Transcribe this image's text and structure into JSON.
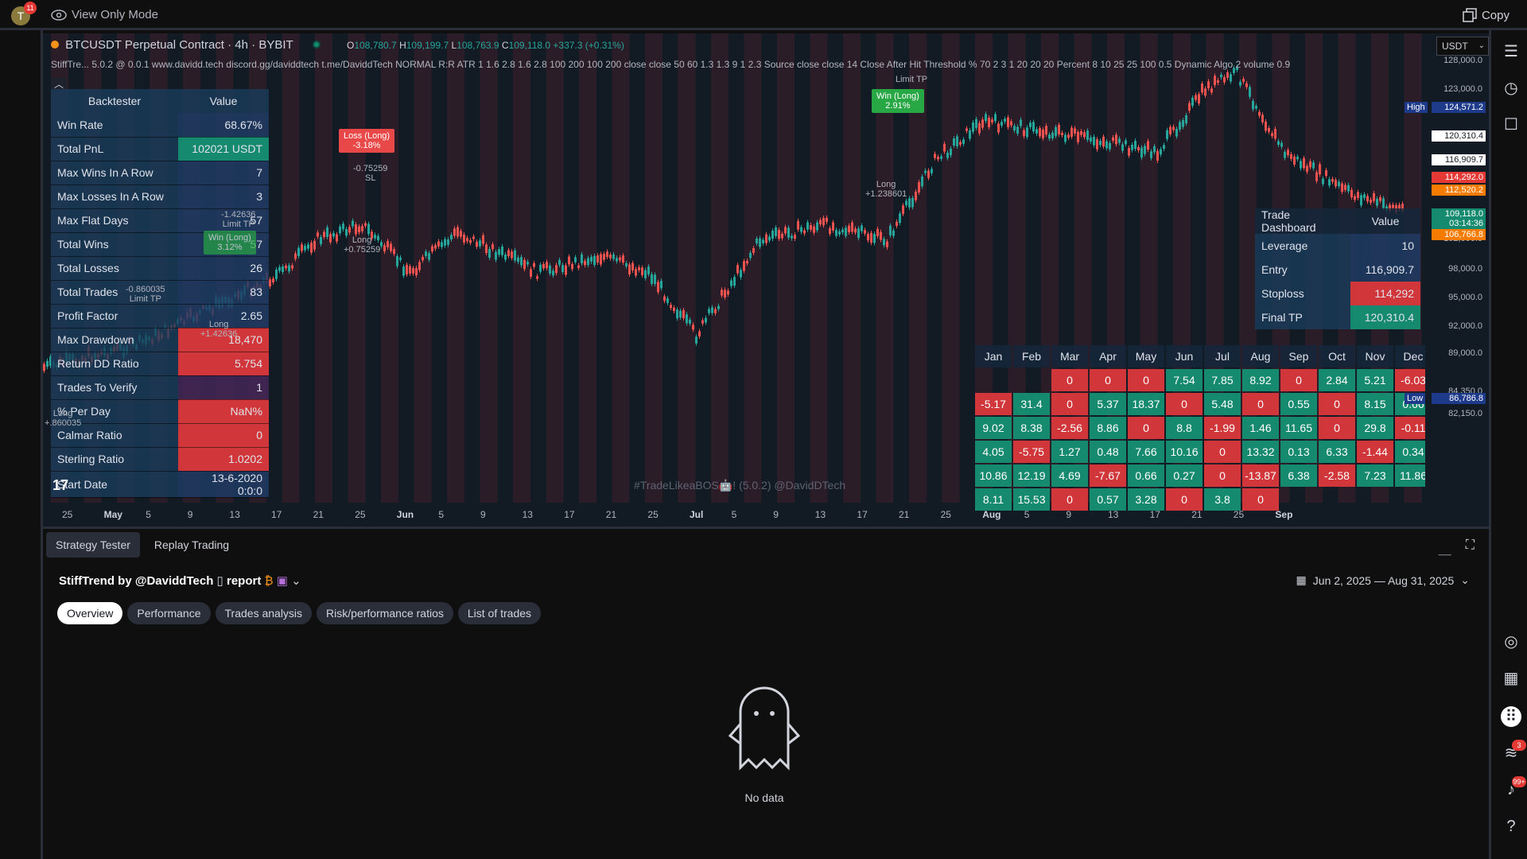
{
  "topbar": {
    "avatar_letter": "T",
    "avatar_badge": "11",
    "view_mode": "View Only Mode",
    "copy_label": "Copy"
  },
  "chart": {
    "symbol": "BTCUSDT Perpetual Contract · 4h · BYBIT",
    "ohlc": {
      "o_label": "O",
      "o": "108,780.7",
      "h_label": "H",
      "h": "109,199.7",
      "l_label": "L",
      "l": "108,763.9",
      "c_label": "C",
      "c": "109,118.0",
      "change": "+337.3 (+0.31%)"
    },
    "indicator": "StiffTre... 5.0.2 @ 0.0.1 www.davidd.tech discord.gg/daviddtech t.me/DaviddTech NORMAL R:R ATR 1 1.6 2.8 1.6 2.8 100 200 100 200 close close 50 60 1.3 1.3 9 1 2.3 Source close close 14 Close After Hit Threshold % 70 2 3 1 20 20 20 Percent 8 10 25 25 100 0.5 Dynamic Algo 2 volume 0.9",
    "currency": "USDT",
    "watermark": "#TradeLikeaBOS🤖! (5.0.2) @DavidDTech",
    "tv_logo": "17",
    "price_axis": [
      "128,000.0",
      "123,000.0",
      "110,000.0",
      "102,000.0",
      "98,000.0",
      "95,000.0",
      "92,000.0",
      "89,000.0",
      "84,350.0",
      "82,150.0"
    ],
    "price_tags": [
      {
        "label": "High",
        "value": "124,571.2",
        "color": "#1e3a8a"
      },
      {
        "label": "",
        "value": "120,310.4",
        "color": "#ffffff"
      },
      {
        "label": "",
        "value": "116,909.7",
        "color": "#ffffff"
      },
      {
        "label": "",
        "value": "114,292.0",
        "color": "#e53935"
      },
      {
        "label": "",
        "value": "112,520.2",
        "color": "#f57c00"
      },
      {
        "label": "",
        "value": "109,118.0",
        "sub": "03:14:36",
        "color": "#168a6f"
      },
      {
        "label": "",
        "value": "106,766.8",
        "color": "#f57c00"
      },
      {
        "label": "Low",
        "value": "86,786.8",
        "color": "#1e3a8a"
      }
    ],
    "time_axis": [
      "25",
      "May",
      "5",
      "9",
      "13",
      "17",
      "21",
      "25",
      "Jun",
      "5",
      "9",
      "13",
      "17",
      "21",
      "25",
      "Jul",
      "5",
      "9",
      "13",
      "17",
      "21",
      "25",
      "Aug",
      "5",
      "9",
      "13",
      "17",
      "21",
      "25",
      "Sep"
    ],
    "markers": {
      "loss_long": {
        "title": "Loss (Long)",
        "pct": "-3.18%"
      },
      "loss_annot": [
        "-0.75259",
        "SL"
      ],
      "loss_entry": [
        "Long",
        "+0.75259"
      ],
      "win_long_top": {
        "title": "Win (Long)",
        "pct": "2.91%"
      },
      "win_top_annot": "Limit TP",
      "win_top_entry": [
        "Long",
        "+1.238601"
      ],
      "win_long_left": {
        "title": "Win (Long)",
        "pct": "3.12%"
      },
      "win_left_annot": [
        "-1.42636",
        "Limit TP"
      ],
      "left_annot": [
        "-0.860035",
        "Limit TP"
      ],
      "left_entry": [
        "Long",
        "+1.42636"
      ],
      "far_left_entry": [
        "Long",
        "+.860035"
      ]
    }
  },
  "backtester": {
    "header": {
      "key": "Backtester",
      "value": "Value"
    },
    "rows": [
      {
        "key": "Win Rate",
        "value": "68.67%",
        "style": "blue"
      },
      {
        "key": "Total PnL",
        "value": "102021 USDT",
        "style": "green"
      },
      {
        "key": "Max Wins In A Row",
        "value": "7",
        "style": "blue"
      },
      {
        "key": "Max Losses In A Row",
        "value": "3",
        "style": "blue"
      },
      {
        "key": "Max Flat Days",
        "value": "57",
        "style": "blue"
      },
      {
        "key": "Total Wins",
        "value": "57",
        "style": "blue"
      },
      {
        "key": "Total Losses",
        "value": "26",
        "style": "blue"
      },
      {
        "key": "Total Trades",
        "value": "83",
        "style": "blue"
      },
      {
        "key": "Profit Factor",
        "value": "2.65",
        "style": "blue"
      },
      {
        "key": "Max Drawdown",
        "value": "18,470",
        "style": "red"
      },
      {
        "key": "Return DD Ratio",
        "value": "5.754",
        "style": "red"
      },
      {
        "key": "Trades To Verify",
        "value": "1",
        "style": "purple"
      },
      {
        "key": "% Per Day",
        "value": "NaN%",
        "style": "red"
      },
      {
        "key": "Calmar Ratio",
        "value": "0",
        "style": "red"
      },
      {
        "key": "Sterling Ratio",
        "value": "1.0202",
        "style": "red"
      },
      {
        "key": "Start Date",
        "value": "13-6-2020 0:0:0",
        "style": "blue"
      }
    ]
  },
  "trade_dashboard": {
    "header": {
      "key": "Trade Dashboard",
      "value": "Value"
    },
    "rows": [
      {
        "key": "Leverage",
        "value": "10",
        "style": "blue"
      },
      {
        "key": "Entry",
        "value": "116,909.7",
        "style": "blue"
      },
      {
        "key": "Stoploss",
        "value": "114,292",
        "style": "red"
      },
      {
        "key": "Final TP",
        "value": "120,310.4",
        "style": "green"
      }
    ]
  },
  "monthly": {
    "months": [
      "Jan",
      "Feb",
      "Mar",
      "Apr",
      "May",
      "Jun",
      "Jul",
      "Aug",
      "Sep",
      "Oct",
      "Nov",
      "Dec"
    ],
    "rows": [
      [
        "",
        "",
        "0",
        "0",
        "0",
        "7.54",
        "7.85",
        "8.92",
        "0",
        "2.84",
        "5.21",
        "-6.03"
      ],
      [
        "-5.17",
        "31.4",
        "0",
        "5.37",
        "18.37",
        "0",
        "5.48",
        "0",
        "0.55",
        "0",
        "8.15",
        "0.66"
      ],
      [
        "9.02",
        "8.38",
        "-2.56",
        "8.86",
        "0",
        "8.8",
        "-1.99",
        "1.46",
        "11.65",
        "0",
        "29.8",
        "-0.11"
      ],
      [
        "4.05",
        "-5.75",
        "1.27",
        "0.48",
        "7.66",
        "10.16",
        "0",
        "13.32",
        "0.13",
        "6.33",
        "-1.44",
        "0.34"
      ],
      [
        "10.86",
        "12.19",
        "4.69",
        "-7.67",
        "0.66",
        "0.27",
        "0",
        "-13.87",
        "6.38",
        "-2.58",
        "7.23",
        "11.86"
      ],
      [
        "8.11",
        "15.53",
        "0",
        "0.57",
        "3.28",
        "0",
        "3.8",
        "0",
        "",
        "",
        "",
        ""
      ]
    ]
  },
  "panel": {
    "tabs": [
      "Strategy Tester",
      "Replay Trading"
    ],
    "strategy_name": "StiffTrend by @DaviddTech",
    "report_label": "report",
    "date_range": "Jun 2, 2025 — Aug 31, 2025",
    "subtabs": [
      "Overview",
      "Performance",
      "Trades analysis",
      "Risk/performance ratios",
      "List of trades"
    ],
    "no_data": "No data"
  },
  "rightbar": {
    "badge_feed": "3",
    "badge_notif": "99+"
  }
}
